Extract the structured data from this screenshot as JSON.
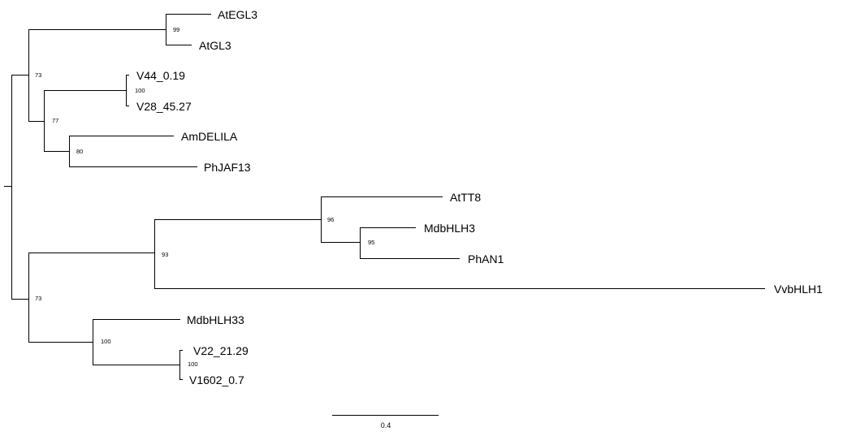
{
  "tree": {
    "leaves": [
      {
        "id": "AtEGL3",
        "label": "AtEGL3"
      },
      {
        "id": "AtGL3",
        "label": "AtGL3"
      },
      {
        "id": "V44",
        "label": "V44_0.19"
      },
      {
        "id": "V28",
        "label": "V28_45.27"
      },
      {
        "id": "AmDELILA",
        "label": "AmDELILA"
      },
      {
        "id": "PhJAF13",
        "label": "PhJAF13"
      },
      {
        "id": "AtTT8",
        "label": "AtTT8"
      },
      {
        "id": "MdbHLH3",
        "label": "MdbHLH3"
      },
      {
        "id": "PhAN1",
        "label": "PhAN1"
      },
      {
        "id": "VvbHLH1",
        "label": "VvbHLH1"
      },
      {
        "id": "MdbHLH33",
        "label": "MdbHLH33"
      },
      {
        "id": "V22",
        "label": "V22_21.29"
      },
      {
        "id": "V1602",
        "label": "V1602_0.7"
      }
    ],
    "support_values": [
      {
        "clade": "AtEGL3+AtGL3",
        "value": "99"
      },
      {
        "clade": "V44+V28",
        "value": "100"
      },
      {
        "clade": "AmDELILA+PhJAF13",
        "value": "80"
      },
      {
        "clade": "V44/V28+AmDELILA/PhJAF13",
        "value": "77"
      },
      {
        "clade": "upper-group",
        "value": "73"
      },
      {
        "clade": "MdbHLH3+PhAN1",
        "value": "95"
      },
      {
        "clade": "AtTT8+MdbHLH3/PhAN1",
        "value": "96"
      },
      {
        "clade": "TT8-group+VvbHLH1",
        "value": "93"
      },
      {
        "clade": "V22+V1602",
        "value": "100"
      },
      {
        "clade": "MdbHLH33+V22/V1602",
        "value": "100"
      },
      {
        "clade": "lower-group",
        "value": "73"
      }
    ],
    "scale_bar": {
      "label": "0.4"
    }
  }
}
